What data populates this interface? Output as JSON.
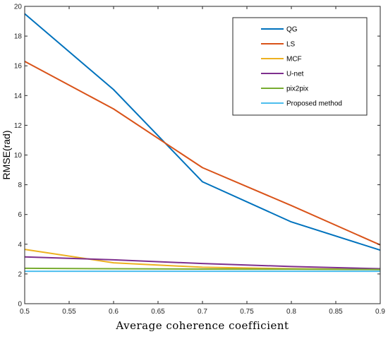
{
  "chart_data": {
    "type": "line",
    "xlabel": "Average coherence coefficient",
    "ylabel": "RMSE(rad)",
    "xlim": [
      0.5,
      0.9
    ],
    "ylim": [
      0,
      20
    ],
    "x_ticks": [
      0.5,
      0.55,
      0.6,
      0.65,
      0.7,
      0.75,
      0.8,
      0.85,
      0.9
    ],
    "y_ticks": [
      0,
      2,
      4,
      6,
      8,
      10,
      12,
      14,
      16,
      18,
      20
    ],
    "x": [
      0.5,
      0.6,
      0.7,
      0.8,
      0.9
    ],
    "grid": false,
    "legend_position": "top-right",
    "series": [
      {
        "name": "QG",
        "color": "#0072BD",
        "values": [
          19.5,
          14.4,
          8.2,
          5.5,
          3.6
        ]
      },
      {
        "name": "LS",
        "color": "#D95319",
        "values": [
          16.3,
          13.1,
          9.15,
          6.6,
          3.95
        ]
      },
      {
        "name": "MCF",
        "color": "#EDB120",
        "values": [
          3.65,
          2.75,
          2.45,
          2.35,
          2.3
        ]
      },
      {
        "name": "U-net",
        "color": "#7E2F8E",
        "values": [
          3.15,
          2.95,
          2.7,
          2.5,
          2.35
        ]
      },
      {
        "name": "pix2pix",
        "color": "#77AC30",
        "values": [
          2.38,
          2.35,
          2.33,
          2.32,
          2.3
        ]
      },
      {
        "name": "Proposed method",
        "color": "#4DBEEE",
        "values": [
          2.18,
          2.18,
          2.18,
          2.18,
          2.18
        ]
      }
    ]
  }
}
